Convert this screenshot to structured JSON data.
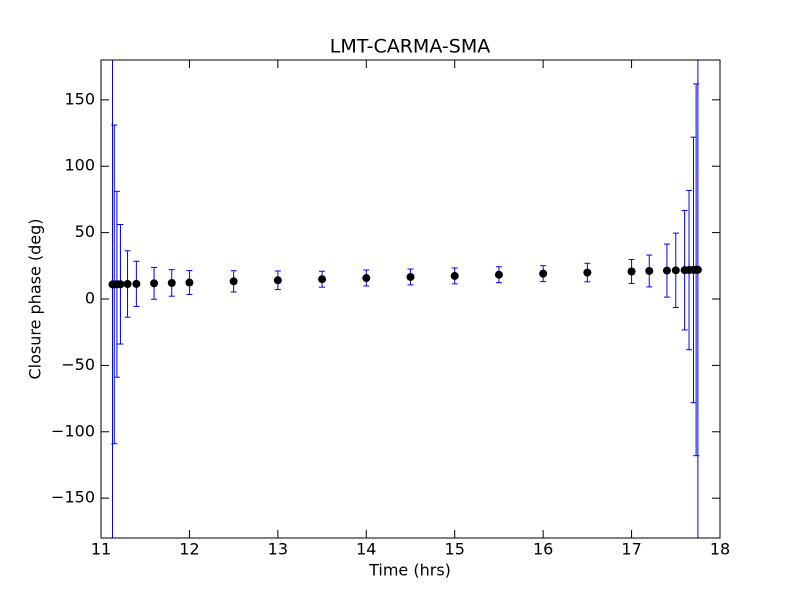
{
  "chart_data": {
    "type": "errorbar",
    "title": "LMT-CARMA-SMA",
    "xlabel": "Time (hrs)",
    "ylabel": "Closure phase (deg)",
    "x": [
      11.13,
      11.15,
      11.18,
      11.22,
      11.3,
      11.4,
      11.6,
      11.8,
      12.0,
      12.5,
      13.0,
      13.5,
      14.0,
      14.5,
      15.0,
      15.5,
      16.0,
      16.5,
      17.0,
      17.2,
      17.4,
      17.5,
      17.6,
      17.65,
      17.7,
      17.73,
      17.75
    ],
    "series": [
      {
        "color": "#000000",
        "error_color": "#0000ff",
        "values": [
          11.0,
          11.0,
          11.1,
          11.1,
          11.3,
          11.4,
          11.8,
          12.1,
          12.4,
          13.3,
          14.1,
          14.9,
          15.8,
          16.6,
          17.4,
          18.3,
          19.1,
          19.9,
          20.7,
          21.1,
          21.4,
          21.6,
          21.7,
          21.8,
          21.9,
          22.0,
          22.0
        ],
        "errors": [
          250,
          120,
          70,
          45,
          25,
          17,
          12,
          10,
          9,
          8,
          7,
          6,
          6,
          6,
          6,
          6,
          6,
          7,
          9,
          12,
          20,
          28,
          45,
          60,
          100,
          140,
          250
        ]
      }
    ],
    "xlim": [
      11,
      18
    ],
    "xticks": [
      11,
      12,
      13,
      14,
      15,
      16,
      17,
      18
    ],
    "ylim": [
      -180,
      180
    ],
    "yticks": [
      {
        "value": -150,
        "label": "−150"
      },
      {
        "value": -100,
        "label": "−100"
      },
      {
        "value": -50,
        "label": "−50"
      },
      0,
      50,
      100,
      150
    ],
    "grid": false
  }
}
